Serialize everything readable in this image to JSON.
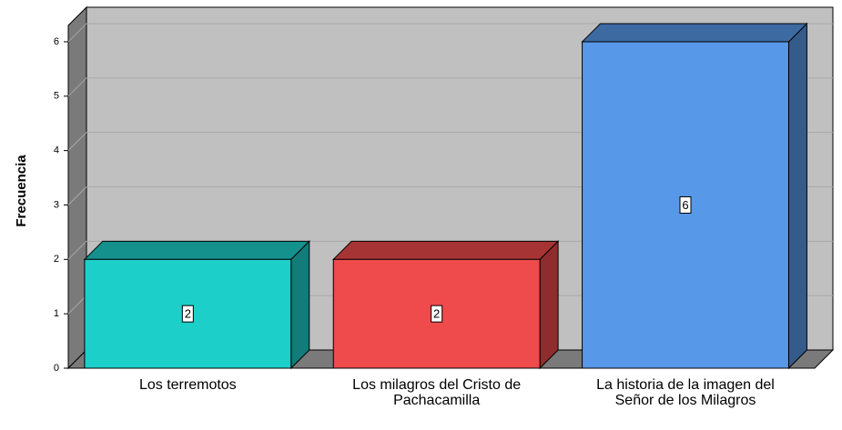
{
  "chart_data": {
    "type": "bar3d",
    "ylabel": "Frecuencia",
    "categories": [
      "Los terremotos",
      "Los milagros del Cristo de Pachacamilla",
      "La historia de la imagen del Señor de los Milagros"
    ],
    "values": [
      2,
      2,
      6
    ],
    "colors": [
      "#1ccfc9",
      "#ef4a4c",
      "#5898e8"
    ],
    "ylim": [
      0,
      6.3
    ],
    "yticks": [
      0,
      1,
      2,
      3,
      4,
      5,
      6
    ],
    "grid": true
  }
}
